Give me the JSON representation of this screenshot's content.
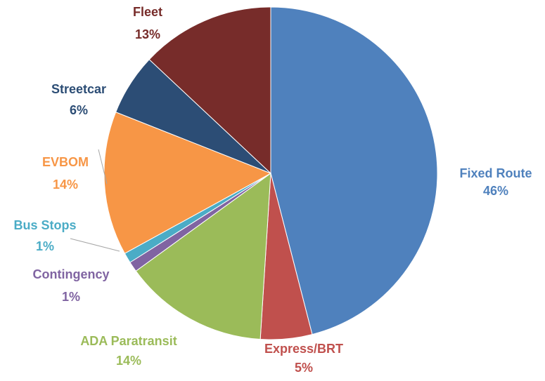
{
  "chart_data": {
    "type": "pie",
    "categories": [
      "Fixed Route",
      "Express/BRT",
      "ADA Paratransit",
      "Contingency",
      "Bus Stops",
      "EVBOM",
      "Streetcar",
      "Fleet"
    ],
    "values": [
      46,
      5,
      14,
      1,
      1,
      14,
      6,
      13
    ],
    "value_labels": [
      "46%",
      "5%",
      "14%",
      "1%",
      "1%",
      "14%",
      "6%",
      "13%"
    ],
    "colors": [
      "#4f81bd",
      "#c0504d",
      "#9bbb59",
      "#8064a2",
      "#4bacc6",
      "#f79646",
      "#2c4d75",
      "#772c2a"
    ]
  }
}
